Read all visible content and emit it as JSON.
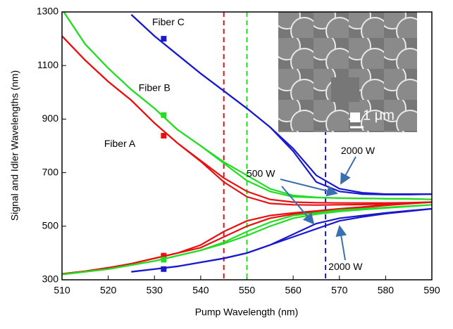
{
  "chart_data": {
    "type": "line",
    "xlabel": "Pump Wavelength (nm)",
    "ylabel": "Signal and Idler Wavelengths (nm)",
    "xlim": [
      510,
      590
    ],
    "ylim": [
      300,
      1300
    ],
    "xticks": [
      510,
      520,
      530,
      540,
      550,
      560,
      570,
      580,
      590
    ],
    "yticks": [
      300,
      500,
      700,
      900,
      1100,
      1300
    ],
    "x": [
      510,
      515,
      520,
      525,
      530,
      535,
      540,
      545,
      550,
      555,
      560,
      565,
      570,
      575,
      580,
      585,
      590
    ],
    "series": [
      {
        "color": "#e81010",
        "values": [
          1210,
          1120,
          1040,
          970,
          885,
          810,
          745,
          680,
          630,
          600,
          590,
          588,
          587,
          587,
          587,
          588,
          590
        ]
      },
      {
        "color": "#e81010",
        "values": [
          1210,
          1120,
          1040,
          970,
          885,
          810,
          742,
          665,
          610,
          585,
          580,
          579,
          580,
          581,
          583,
          586,
          590
        ]
      },
      {
        "color": "#e81010",
        "values": [
          322,
          332,
          345,
          360,
          380,
          400,
          430,
          480,
          520,
          540,
          550,
          557,
          565,
          572,
          580,
          585,
          590
        ]
      },
      {
        "color": "#e81010",
        "values": [
          322,
          332,
          345,
          360,
          380,
          400,
          420,
          460,
          500,
          530,
          545,
          553,
          562,
          570,
          578,
          584,
          590
        ]
      },
      {
        "color": "#22dd22",
        "values": [
          1310,
          1180,
          1090,
          1010,
          940,
          860,
          800,
          735,
          670,
          630,
          610,
          607,
          605,
          604,
          603,
          602,
          600
        ]
      },
      {
        "color": "#22dd22",
        "values": [
          1310,
          1180,
          1090,
          1010,
          940,
          860,
          800,
          740,
          690,
          640,
          615,
          608,
          605,
          604,
          603,
          602,
          600
        ]
      },
      {
        "color": "#22dd22",
        "values": [
          320,
          330,
          340,
          355,
          370,
          390,
          410,
          440,
          480,
          515,
          540,
          550,
          560,
          565,
          570,
          575,
          580
        ]
      },
      {
        "color": "#22dd22",
        "values": [
          320,
          330,
          340,
          355,
          370,
          390,
          410,
          435,
          465,
          500,
          530,
          545,
          555,
          562,
          568,
          574,
          580
        ]
      },
      {
        "color": "#1a1acc",
        "values": [
          null,
          null,
          null,
          1290,
          1210,
          1140,
          1070,
          1005,
          940,
          870,
          790,
          690,
          640,
          625,
          620,
          620,
          620
        ]
      },
      {
        "color": "#1a1acc",
        "values": [
          null,
          null,
          null,
          1290,
          1210,
          1140,
          1070,
          1005,
          940,
          870,
          780,
          665,
          630,
          620,
          618,
          618,
          620
        ]
      },
      {
        "color": "#1a1acc",
        "values": [
          null,
          null,
          null,
          330,
          340,
          350,
          365,
          380,
          400,
          430,
          470,
          510,
          530,
          540,
          550,
          558,
          565
        ]
      },
      {
        "color": "#1a1acc",
        "values": [
          null,
          null,
          null,
          330,
          340,
          350,
          365,
          380,
          400,
          430,
          460,
          490,
          520,
          535,
          547,
          556,
          565
        ]
      }
    ],
    "points": [
      {
        "color": "#e81010",
        "x": [
          532,
          532
        ],
        "values": [
          838,
          390
        ]
      },
      {
        "color": "#22dd22",
        "x": [
          532,
          532
        ],
        "values": [
          915,
          375
        ]
      },
      {
        "color": "#1a1acc",
        "x": [
          532,
          532
        ],
        "values": [
          1200,
          340
        ]
      }
    ],
    "vlines": [
      {
        "color": "#e81010",
        "x": 545
      },
      {
        "color": "#22dd22",
        "x": 550
      },
      {
        "color": "#1a1acc",
        "x": 567
      }
    ],
    "annotations": [
      {
        "text": "Fiber A",
        "x": 522.5,
        "y": 806
      },
      {
        "text": "Fiber B",
        "x": 530,
        "y": 1014
      },
      {
        "text": "Fiber C",
        "x": 533,
        "y": 1260
      },
      {
        "text": "500 W",
        "x": 553,
        "y": 694
      },
      {
        "text": "2000 W",
        "x": 574,
        "y": 780
      },
      {
        "text": "2000 W",
        "x": 571.3,
        "y": 347
      }
    ],
    "inset_label": "1 μm"
  }
}
